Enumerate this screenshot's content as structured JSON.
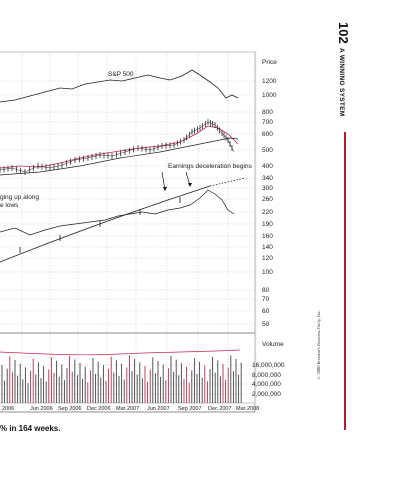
{
  "page": {
    "page_number": "102",
    "section_title": "A WINNING SYSTEM",
    "caption": "% in 164 weeks.",
    "copyright": "© 2008 Investor's Business Daily, Inc."
  },
  "chart_data": {
    "type": "line",
    "price_header": "Price",
    "volume_header": "Volume",
    "index_label": "S&P 500",
    "annotations": {
      "earnings": "Earnings deceleration begins",
      "edging_line1": "ging up along",
      "edging_line2": "e lows"
    },
    "price_ticks": [
      "1200",
      "1000",
      "800",
      "700",
      "600",
      "500",
      "400",
      "340",
      "300",
      "260",
      "220",
      "190",
      "160",
      "140",
      "120",
      "100",
      "80",
      "70",
      "60",
      "50"
    ],
    "volume_ticks": [
      "16,000,000",
      "8,000,000",
      "4,000,000",
      "2,000,000"
    ],
    "x_ticks": [
      "2006",
      "Jun 2006",
      "Sep 2006",
      "Dec 2006",
      "Mar 2007",
      "Jun 2007",
      "Sep 2007",
      "Dec 2007",
      "Mar 2008"
    ],
    "colors": {
      "moving_average": "#c0284a",
      "grid": "#bdbdbd",
      "volume_bar": "#444444",
      "volume_up": "#b03050"
    }
  }
}
